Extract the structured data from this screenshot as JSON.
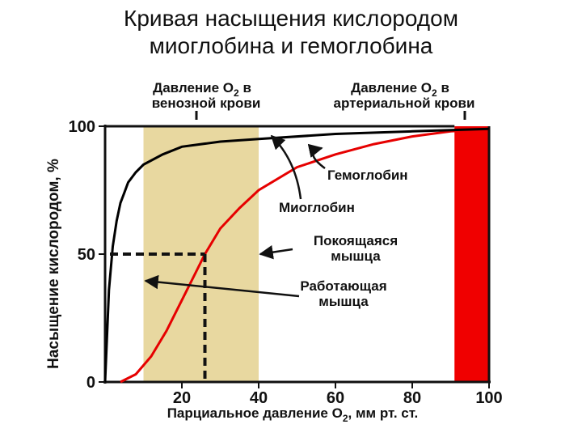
{
  "title": {
    "line1": "Кривая насыщения кислородом",
    "line2": "миоглобина и гемоглобина"
  },
  "colors": {
    "hemoglobin": "#e60000",
    "myoglobin": "#000000",
    "venous_band": "#e8d8a0",
    "arterial_band": "#f00000"
  },
  "chart_data": {
    "type": "line",
    "xlabel_prefix": "Парциальное давление O",
    "xlabel_sub": "2",
    "xlabel_suffix": ", мм рт. ст.",
    "ylabel": "Насыщение кислородом, %",
    "xlim": [
      0,
      100
    ],
    "ylim": [
      0,
      100
    ],
    "x_ticks": [
      20,
      40,
      60,
      80,
      100
    ],
    "y_ticks": [
      0,
      50,
      100
    ],
    "series": [
      {
        "name": "Миоглобин",
        "x": [
          0,
          1,
          2,
          3,
          4,
          5,
          6,
          8,
          10,
          15,
          20,
          30,
          40,
          60,
          80,
          100
        ],
        "y": [
          0,
          36,
          53,
          63,
          70,
          74,
          78,
          82,
          85,
          89,
          92,
          94,
          95,
          97,
          98,
          99
        ]
      },
      {
        "name": "Гемоглобин",
        "x": [
          4,
          8,
          12,
          16,
          20,
          24,
          26,
          30,
          35,
          40,
          50,
          60,
          70,
          80,
          90,
          100
        ],
        "y": [
          0,
          3,
          10,
          20,
          32,
          44,
          50,
          60,
          68,
          75,
          84,
          89,
          93,
          96,
          98,
          99
        ]
      }
    ],
    "regions": [
      {
        "name": "venous",
        "x_range": [
          10,
          40
        ],
        "label_line1_prefix": "Давление O",
        "label_line1_sub": "2",
        "label_line1_suffix": " в",
        "label_line2": "венозной крови"
      },
      {
        "name": "arterial",
        "x_range": [
          91,
          100
        ],
        "label_line1_prefix": "Давление O",
        "label_line1_sub": "2",
        "label_line1_suffix": " в",
        "label_line2": "артериальной крови"
      }
    ],
    "p50_marker": {
      "x": 26,
      "y": 50
    },
    "annotations": [
      {
        "name": "hemoglobin",
        "text_lines": [
          "Гемоглобин"
        ]
      },
      {
        "name": "myoglobin",
        "text_lines": [
          "Миоглобин"
        ]
      },
      {
        "name": "resting",
        "text_lines": [
          "Покоящаяся",
          "мышца"
        ]
      },
      {
        "name": "working",
        "text_lines": [
          "Работающая",
          "мышца"
        ]
      }
    ]
  }
}
